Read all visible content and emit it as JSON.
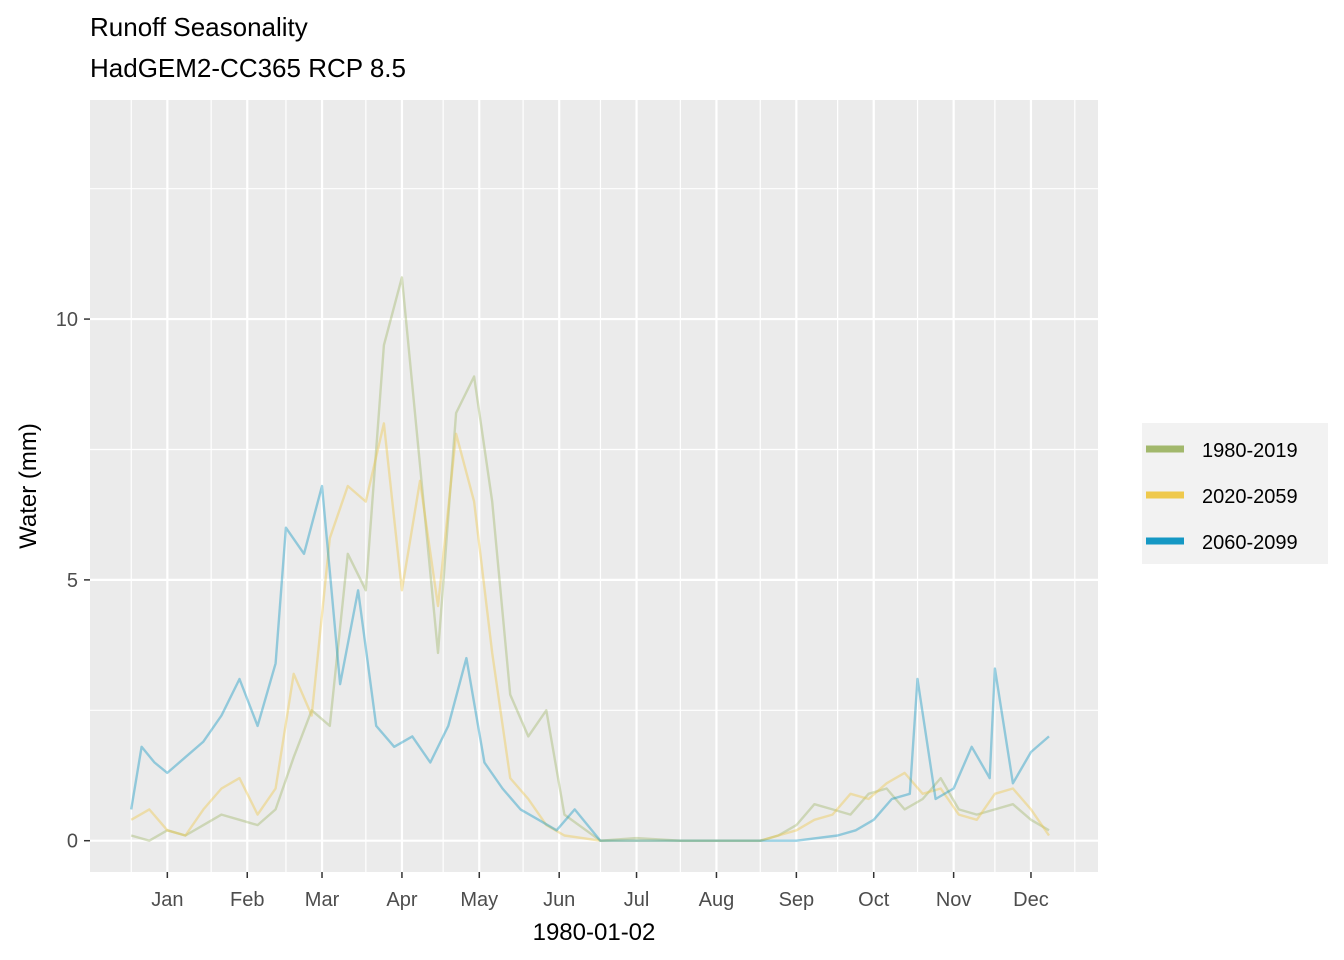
{
  "chart_data": {
    "type": "line",
    "title": "Runoff Seasonality",
    "subtitle": "HadGEM2-CC365 RCP 8.5",
    "xlabel": "1980-01-02",
    "ylabel": "Water (mm)",
    "x_ticks": [
      "Jan",
      "Feb",
      "Mar",
      "Apr",
      "May",
      "Jun",
      "Jul",
      "Aug",
      "Sep",
      "Oct",
      "Nov",
      "Dec"
    ],
    "y_ticks": [
      0,
      5,
      10
    ],
    "xlim": [
      "1979-12-16",
      "1981-01-10"
    ],
    "ylim": [
      -0.6,
      14.2
    ],
    "grid": true,
    "legend_position": "right",
    "series": [
      {
        "name": "1980-2019",
        "color": "#a2b86c",
        "x": [
          "1980-01-01",
          "1980-01-08",
          "1980-01-15",
          "1980-01-22",
          "1980-01-29",
          "1980-02-05",
          "1980-02-12",
          "1980-02-19",
          "1980-02-26",
          "1980-03-04",
          "1980-03-11",
          "1980-03-18",
          "1980-03-25",
          "1980-04-01",
          "1980-04-08",
          "1980-04-15",
          "1980-04-22",
          "1980-04-29",
          "1980-05-06",
          "1980-05-13",
          "1980-05-20",
          "1980-05-27",
          "1980-06-03",
          "1980-06-10",
          "1980-06-17",
          "1980-07-01",
          "1980-07-15",
          "1980-08-01",
          "1980-08-15",
          "1980-09-01",
          "1980-09-08",
          "1980-09-15",
          "1980-09-22",
          "1980-09-29",
          "1980-10-06",
          "1980-10-13",
          "1980-10-20",
          "1980-10-27",
          "1980-11-03",
          "1980-11-10",
          "1980-11-17",
          "1980-11-24",
          "1980-12-01",
          "1980-12-08",
          "1980-12-15",
          "1980-12-22"
        ],
        "values": [
          0.1,
          0.0,
          0.2,
          0.1,
          0.3,
          0.5,
          0.4,
          0.3,
          0.6,
          1.6,
          2.5,
          2.2,
          5.5,
          4.8,
          9.5,
          10.8,
          7.2,
          3.6,
          8.2,
          8.9,
          6.5,
          2.8,
          2.0,
          2.5,
          0.5,
          0.0,
          0.05,
          0.0,
          0.0,
          0.0,
          0.1,
          0.3,
          0.7,
          0.6,
          0.5,
          0.9,
          1.0,
          0.6,
          0.8,
          1.2,
          0.6,
          0.5,
          0.6,
          0.7,
          0.4,
          0.2
        ]
      },
      {
        "name": "2020-2059",
        "color": "#efc94c",
        "x": [
          "1980-01-01",
          "1980-01-08",
          "1980-01-15",
          "1980-01-22",
          "1980-01-29",
          "1980-02-05",
          "1980-02-12",
          "1980-02-19",
          "1980-02-26",
          "1980-03-04",
          "1980-03-11",
          "1980-03-18",
          "1980-03-25",
          "1980-04-01",
          "1980-04-08",
          "1980-04-15",
          "1980-04-22",
          "1980-04-29",
          "1980-05-06",
          "1980-05-13",
          "1980-05-20",
          "1980-05-27",
          "1980-06-03",
          "1980-06-10",
          "1980-06-17",
          "1980-07-01",
          "1980-07-15",
          "1980-08-01",
          "1980-08-15",
          "1980-09-01",
          "1980-09-08",
          "1980-09-15",
          "1980-09-22",
          "1980-09-29",
          "1980-10-06",
          "1980-10-13",
          "1980-10-20",
          "1980-10-27",
          "1980-11-03",
          "1980-11-10",
          "1980-11-17",
          "1980-11-24",
          "1980-12-01",
          "1980-12-08",
          "1980-12-15",
          "1980-12-22"
        ],
        "values": [
          0.4,
          0.6,
          0.2,
          0.1,
          0.6,
          1.0,
          1.2,
          0.5,
          1.0,
          3.2,
          2.4,
          5.8,
          6.8,
          6.5,
          8.0,
          4.8,
          6.9,
          4.5,
          7.8,
          6.5,
          3.6,
          1.2,
          0.8,
          0.3,
          0.1,
          0.0,
          0.0,
          0.0,
          0.0,
          0.0,
          0.1,
          0.2,
          0.4,
          0.5,
          0.9,
          0.8,
          1.1,
          1.3,
          0.9,
          1.0,
          0.5,
          0.4,
          0.9,
          1.0,
          0.6,
          0.1
        ]
      },
      {
        "name": "2060-2099",
        "color": "#1598c4",
        "x": [
          "1980-01-01",
          "1980-01-05",
          "1980-01-10",
          "1980-01-15",
          "1980-01-22",
          "1980-01-29",
          "1980-02-05",
          "1980-02-12",
          "1980-02-19",
          "1980-02-26",
          "1980-03-01",
          "1980-03-08",
          "1980-03-15",
          "1980-03-22",
          "1980-03-29",
          "1980-04-05",
          "1980-04-12",
          "1980-04-19",
          "1980-04-26",
          "1980-05-03",
          "1980-05-10",
          "1980-05-17",
          "1980-05-24",
          "1980-05-31",
          "1980-06-07",
          "1980-06-14",
          "1980-06-21",
          "1980-07-01",
          "1980-07-15",
          "1980-08-01",
          "1980-08-15",
          "1980-09-01",
          "1980-09-15",
          "1980-10-01",
          "1980-10-08",
          "1980-10-15",
          "1980-10-22",
          "1980-10-29",
          "1980-11-01",
          "1980-11-08",
          "1980-11-15",
          "1980-11-22",
          "1980-11-29",
          "1980-12-01",
          "1980-12-08",
          "1980-12-15",
          "1980-12-22"
        ],
        "values": [
          0.6,
          1.8,
          1.5,
          1.3,
          1.6,
          1.9,
          2.4,
          3.1,
          2.2,
          3.4,
          6.0,
          5.5,
          6.8,
          3.0,
          4.8,
          2.2,
          1.8,
          2.0,
          1.5,
          2.2,
          3.5,
          1.5,
          1.0,
          0.6,
          0.4,
          0.2,
          0.6,
          0.0,
          0.0,
          0.0,
          0.0,
          0.0,
          0.0,
          0.1,
          0.2,
          0.4,
          0.8,
          0.9,
          3.1,
          0.8,
          1.0,
          1.8,
          1.2,
          3.3,
          1.1,
          1.7,
          2.0
        ]
      }
    ]
  }
}
